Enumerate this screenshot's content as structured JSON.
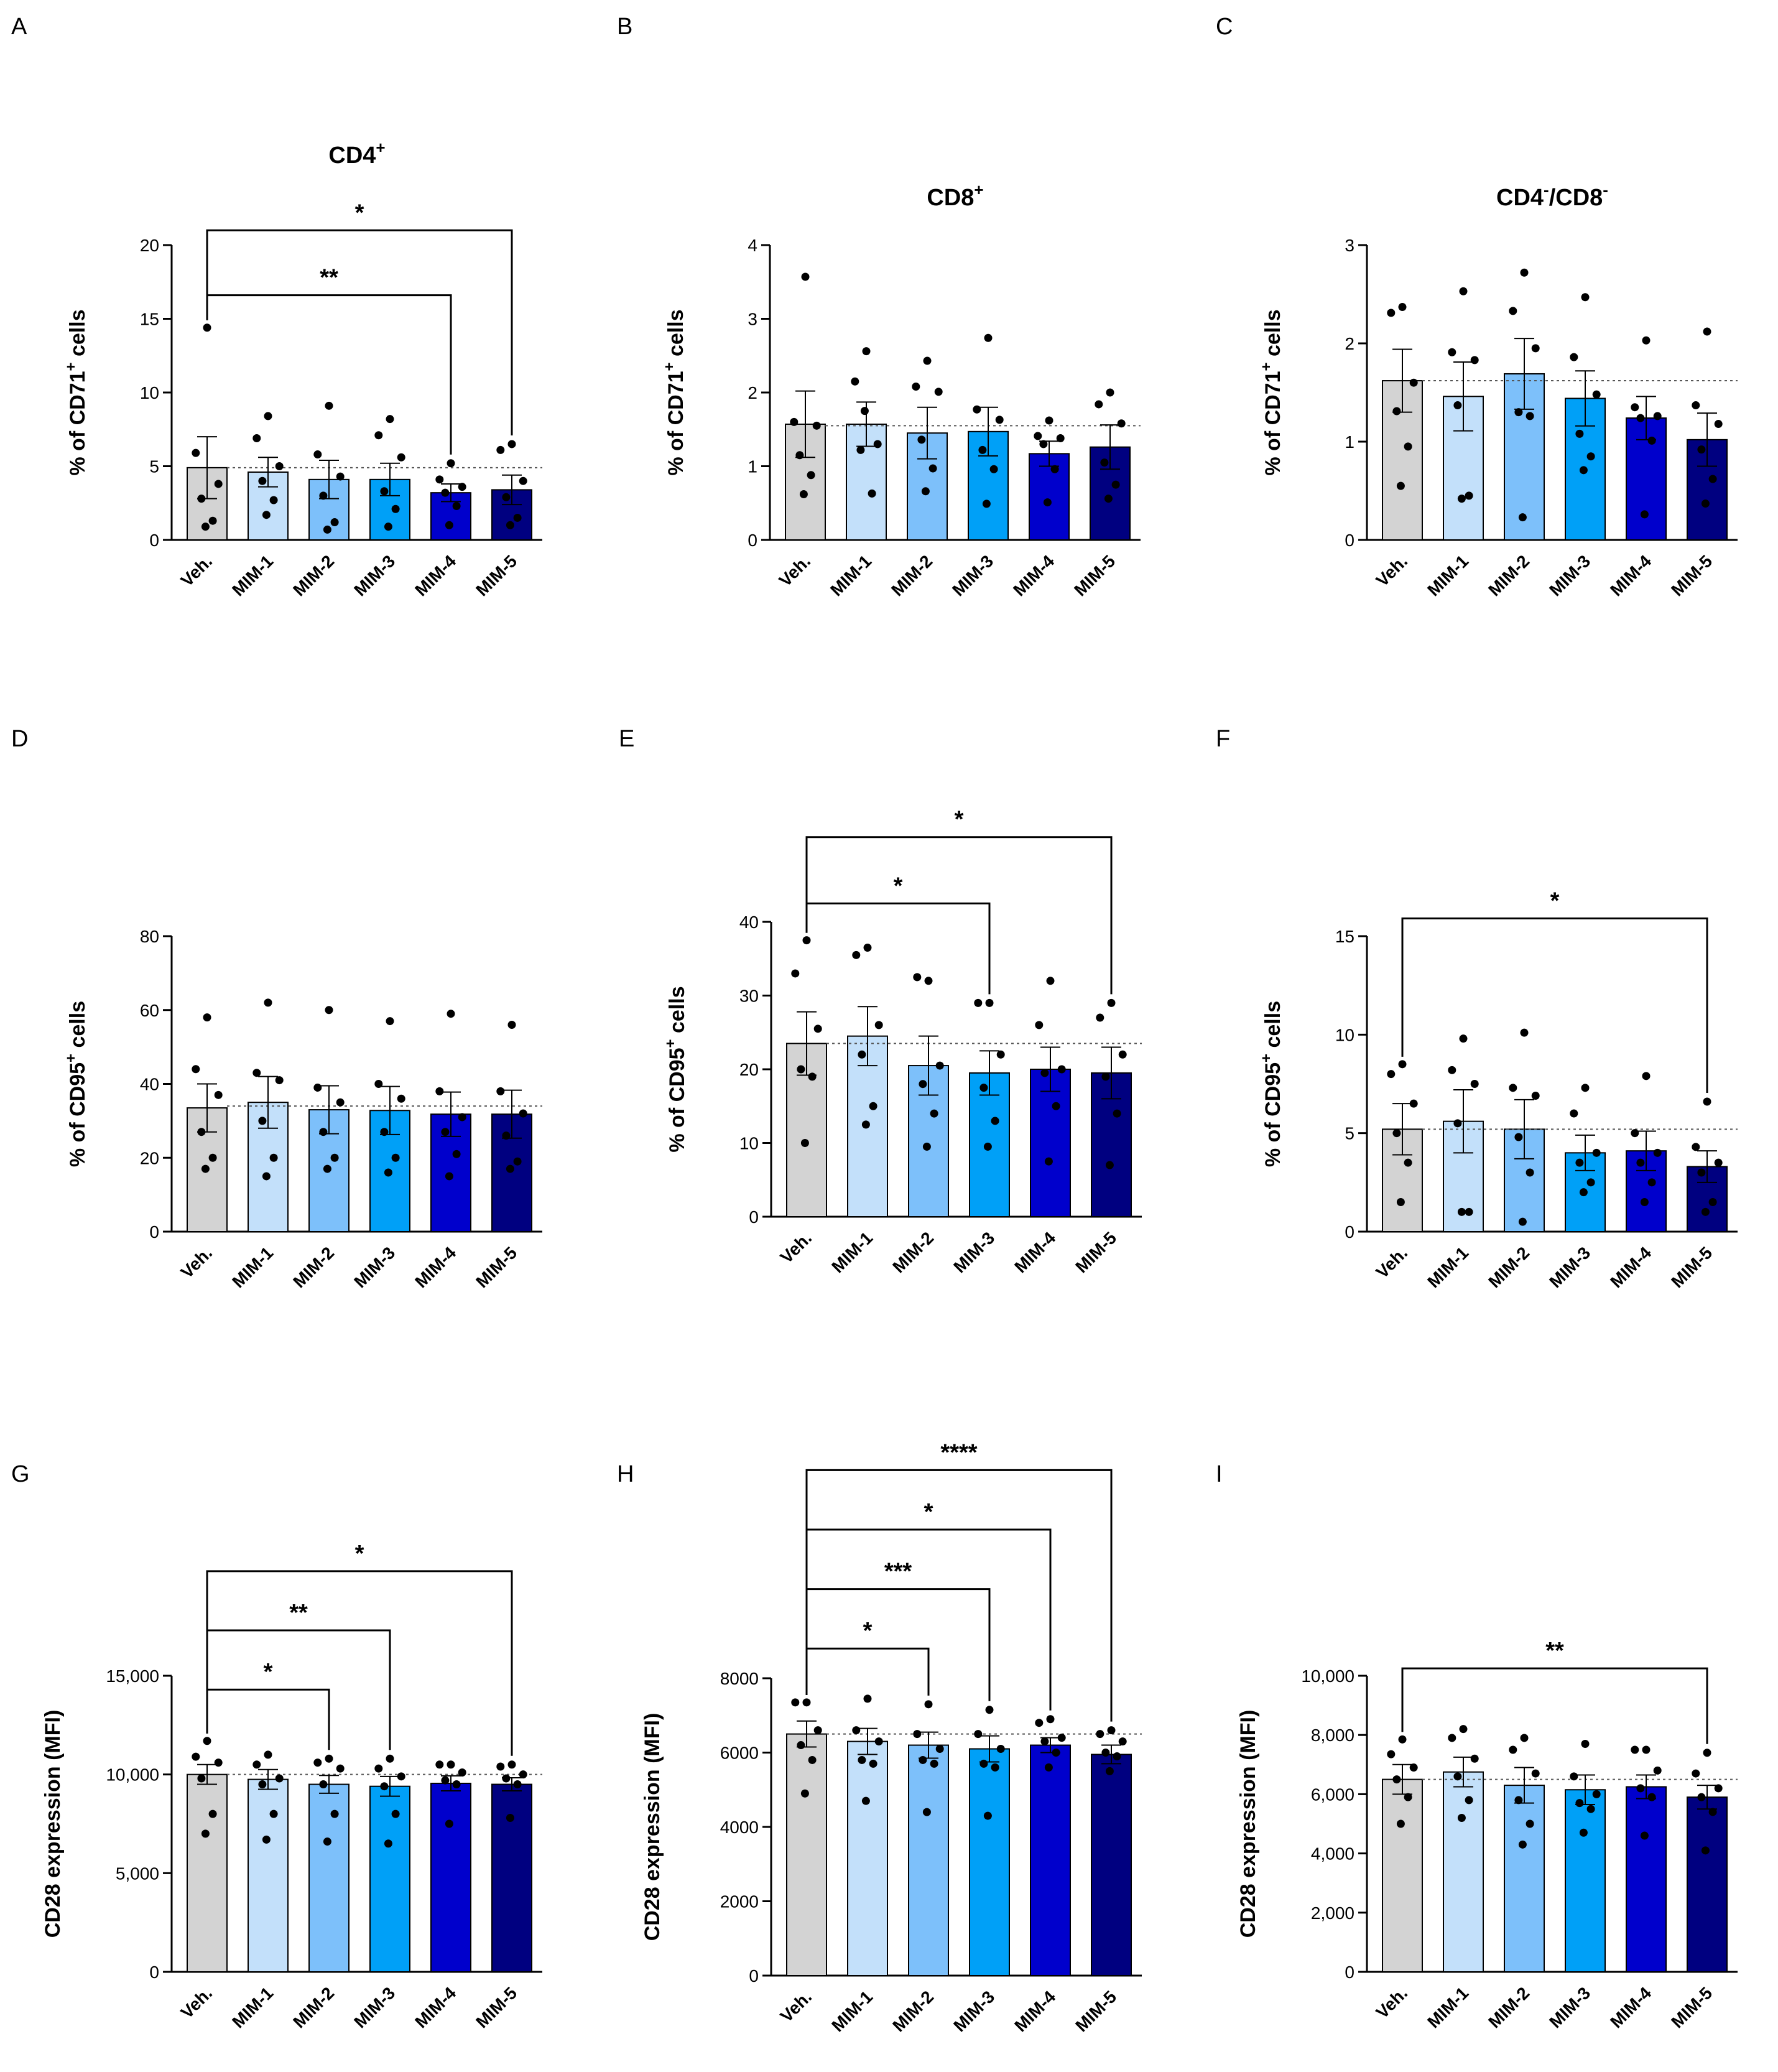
{
  "figure": {
    "colors": [
      "#d3d3d3",
      "#c3e0fa",
      "#7dc0fa",
      "#00a0f7",
      "#0000cc",
      "#000080"
    ]
  },
  "chart_data": [
    {
      "panel": "A",
      "type": "bar",
      "title": "CD4",
      "title_sup": "+",
      "ylabel": "% of CD71",
      "ylabel_sup": "+",
      "ylabel_suffix": " cells",
      "ylim": [
        0,
        20
      ],
      "yticks": [
        0,
        5,
        10,
        15,
        20
      ],
      "ytick_labels": [
        "0",
        "5",
        "10",
        "15",
        "20"
      ],
      "categories": [
        "Veh.",
        "MIM-1",
        "MIM-2",
        "MIM-3",
        "MIM-4",
        "MIM-5"
      ],
      "values": [
        4.9,
        4.6,
        4.1,
        4.1,
        3.2,
        3.4
      ],
      "errors": [
        2.1,
        1.0,
        1.3,
        1.1,
        0.6,
        1.0
      ],
      "points": [
        [
          14.4,
          5.9,
          3.8,
          2.8,
          1.3,
          0.9
        ],
        [
          8.4,
          6.9,
          5.0,
          4.0,
          2.7,
          1.7
        ],
        [
          9.1,
          5.8,
          4.3,
          3.0,
          1.2,
          0.7
        ],
        [
          8.2,
          7.1,
          5.6,
          3.3,
          2.1,
          0.9
        ],
        [
          5.2,
          4.1,
          3.6,
          3.2,
          2.3,
          1.0
        ],
        [
          6.5,
          6.1,
          4.0,
          2.9,
          1.5,
          1.0
        ]
      ],
      "reference": 4.9,
      "significance": [
        {
          "from": 0,
          "to": 5,
          "y": 21,
          "label": "*"
        },
        {
          "from": 0,
          "to": 4,
          "y": 16.6,
          "label": "**"
        }
      ]
    },
    {
      "panel": "B",
      "type": "bar",
      "title": "CD8",
      "title_sup": "+",
      "ylabel": "% of CD71",
      "ylabel_sup": "+",
      "ylabel_suffix": " cells",
      "ylim": [
        0,
        4
      ],
      "yticks": [
        0,
        1,
        2,
        3,
        4
      ],
      "ytick_labels": [
        "0",
        "1",
        "2",
        "3",
        "4"
      ],
      "categories": [
        "Veh.",
        "MIM-1",
        "MIM-2",
        "MIM-3",
        "MIM-4",
        "MIM-5"
      ],
      "values": [
        1.57,
        1.57,
        1.45,
        1.47,
        1.17,
        1.26
      ],
      "errors": [
        0.45,
        0.3,
        0.35,
        0.33,
        0.17,
        0.3
      ],
      "points": [
        [
          3.57,
          1.6,
          1.55,
          1.15,
          0.88,
          0.62
        ],
        [
          2.56,
          2.15,
          1.3,
          1.22,
          0.63,
          1.75
        ],
        [
          2.43,
          2.08,
          2.01,
          1.36,
          0.97,
          0.66
        ],
        [
          2.74,
          1.77,
          1.63,
          1.22,
          0.96,
          0.49
        ],
        [
          1.62,
          1.41,
          1.38,
          1.3,
          0.96,
          0.51
        ],
        [
          2.0,
          1.84,
          1.58,
          1.05,
          0.75,
          0.56
        ]
      ],
      "reference": 1.55,
      "significance": []
    },
    {
      "panel": "C",
      "type": "bar",
      "title": "CD4",
      "title_sup": "-",
      "title_mid": "/CD8",
      "title_sup2": "-",
      "ylabel": "% of CD71",
      "ylabel_sup": "+",
      "ylabel_suffix": " cells",
      "ylim": [
        0,
        3
      ],
      "yticks": [
        0,
        1,
        2,
        3
      ],
      "ytick_labels": [
        "0",
        "1",
        "2",
        "3"
      ],
      "categories": [
        "Veh.",
        "MIM-1",
        "MIM-2",
        "MIM-3",
        "MIM-4",
        "MIM-5"
      ],
      "values": [
        1.62,
        1.46,
        1.69,
        1.44,
        1.24,
        1.02
      ],
      "errors": [
        0.32,
        0.35,
        0.36,
        0.28,
        0.22,
        0.27
      ],
      "points": [
        [
          2.37,
          2.31,
          1.6,
          1.31,
          0.95,
          0.55
        ],
        [
          2.53,
          1.91,
          1.83,
          1.37,
          0.45,
          0.42
        ],
        [
          2.72,
          2.33,
          1.95,
          1.3,
          1.26,
          0.23
        ],
        [
          2.47,
          1.86,
          1.48,
          1.08,
          0.85,
          0.71
        ],
        [
          2.03,
          1.35,
          1.26,
          1.24,
          1.01,
          0.26
        ],
        [
          2.12,
          1.37,
          1.18,
          0.92,
          0.62,
          0.37
        ]
      ],
      "reference": 1.62,
      "significance": []
    },
    {
      "panel": "D",
      "type": "bar",
      "title": "",
      "ylabel": "% of CD95",
      "ylabel_sup": "+",
      "ylabel_suffix": " cells",
      "ylim": [
        0,
        80
      ],
      "yticks": [
        0,
        20,
        40,
        60,
        80
      ],
      "ytick_labels": [
        "0",
        "20",
        "40",
        "60",
        "80"
      ],
      "categories": [
        "Veh.",
        "MIM-1",
        "MIM-2",
        "MIM-3",
        "MIM-4",
        "MIM-5"
      ],
      "values": [
        33.5,
        35.0,
        33.0,
        32.8,
        31.8,
        31.8
      ],
      "errors": [
        6.5,
        7.0,
        6.5,
        6.5,
        6.0,
        6.5
      ],
      "points": [
        [
          58.0,
          44.0,
          37.0,
          27.0,
          20.0,
          17.0
        ],
        [
          62.0,
          43.0,
          41.0,
          30.0,
          20.0,
          15.0
        ],
        [
          60.0,
          39.0,
          35.0,
          27.0,
          20.0,
          17.0
        ],
        [
          57.0,
          40.0,
          36.0,
          27.0,
          20.0,
          16.0
        ],
        [
          59.0,
          38.0,
          31.0,
          27.0,
          21.0,
          15.0
        ],
        [
          56.0,
          38.0,
          32.0,
          26.0,
          19.0,
          17.0
        ]
      ],
      "reference": 34.0,
      "significance": []
    },
    {
      "panel": "E",
      "type": "bar",
      "title": "",
      "ylabel": "% of CD95",
      "ylabel_sup": "+",
      "ylabel_suffix": " cells",
      "ylim": [
        0,
        40
      ],
      "yticks": [
        0,
        10,
        20,
        30,
        40
      ],
      "ytick_labels": [
        "0",
        "10",
        "20",
        "30",
        "40"
      ],
      "categories": [
        "Veh.",
        "MIM-1",
        "MIM-2",
        "MIM-3",
        "MIM-4",
        "MIM-5"
      ],
      "values": [
        23.5,
        24.5,
        20.5,
        19.5,
        20.0,
        19.5
      ],
      "errors": [
        4.3,
        4.0,
        4.0,
        3.0,
        3.0,
        3.5
      ],
      "points": [
        [
          37.5,
          33.0,
          25.5,
          20.0,
          19.0,
          10.0
        ],
        [
          36.5,
          35.5,
          26.0,
          22.0,
          15.0,
          12.5
        ],
        [
          32.0,
          32.5,
          20.5,
          18.0,
          14.0,
          9.5
        ],
        [
          29.0,
          29.0,
          22.0,
          17.5,
          13.0,
          9.5
        ],
        [
          32.0,
          26.0,
          20.0,
          19.5,
          15.0,
          7.5
        ],
        [
          29.0,
          27.0,
          22.0,
          19.0,
          14.0,
          7.0
        ]
      ],
      "reference": 23.5,
      "significance": [
        {
          "from": 0,
          "to": 5,
          "y": 51.5,
          "label": "*"
        },
        {
          "from": 0,
          "to": 3,
          "y": 42.5,
          "label": "*"
        }
      ]
    },
    {
      "panel": "F",
      "type": "bar",
      "title": "",
      "ylabel": "% of CD95",
      "ylabel_sup": "+",
      "ylabel_suffix": " cells",
      "ylim": [
        0,
        15
      ],
      "yticks": [
        0,
        5,
        10,
        15
      ],
      "ytick_labels": [
        "0",
        "5",
        "10",
        "15"
      ],
      "categories": [
        "Veh.",
        "MIM-1",
        "MIM-2",
        "MIM-3",
        "MIM-4",
        "MIM-5"
      ],
      "values": [
        5.2,
        5.6,
        5.2,
        4.0,
        4.1,
        3.3
      ],
      "errors": [
        1.3,
        1.6,
        1.5,
        0.9,
        1.0,
        0.8
      ],
      "points": [
        [
          8.5,
          8.0,
          6.5,
          5.0,
          3.5,
          1.5
        ],
        [
          9.8,
          8.2,
          7.5,
          5.5,
          1.0,
          1.0
        ],
        [
          10.1,
          7.3,
          6.9,
          4.8,
          3.0,
          0.5
        ],
        [
          7.3,
          6.0,
          4.0,
          3.5,
          2.5,
          2.0
        ],
        [
          7.9,
          5.0,
          4.0,
          3.5,
          2.5,
          1.5
        ],
        [
          6.6,
          4.3,
          3.5,
          3.0,
          1.5,
          1.0
        ]
      ],
      "reference": 5.2,
      "significance": [
        {
          "from": 0,
          "to": 5,
          "y": 15.9,
          "label": "*"
        }
      ]
    },
    {
      "panel": "G",
      "type": "bar",
      "title": "",
      "ylabel": "CD28 expression (MFI)",
      "ylim": [
        0,
        15000
      ],
      "yticks": [
        0,
        5000,
        10000,
        15000
      ],
      "ytick_labels": [
        "0",
        "5,000",
        "10,000",
        "15,000"
      ],
      "categories": [
        "Veh.",
        "MIM-1",
        "MIM-2",
        "MIM-3",
        "MIM-4",
        "MIM-5"
      ],
      "values": [
        10000,
        9750,
        9500,
        9400,
        9550,
        9500
      ],
      "errors": [
        500,
        500,
        450,
        500,
        380,
        330
      ],
      "points": [
        [
          11700,
          10900,
          10600,
          9800,
          8000,
          7000
        ],
        [
          11000,
          10500,
          9800,
          9500,
          8000,
          6700
        ],
        [
          10800,
          10600,
          10300,
          9500,
          8000,
          6600
        ],
        [
          10800,
          10300,
          9900,
          9400,
          8000,
          6500
        ],
        [
          10500,
          10500,
          10100,
          9700,
          9500,
          7500
        ],
        [
          10500,
          10400,
          10000,
          9800,
          9500,
          7800
        ]
      ],
      "reference": 10000,
      "significance": [
        {
          "from": 0,
          "to": 5,
          "y": 20300,
          "label": "*"
        },
        {
          "from": 0,
          "to": 3,
          "y": 17300,
          "label": "**"
        },
        {
          "from": 0,
          "to": 2,
          "y": 14300,
          "label": "*"
        }
      ]
    },
    {
      "panel": "H",
      "type": "bar",
      "title": "",
      "ylabel": "CD28 expression (MFI)",
      "ylim": [
        0,
        8000
      ],
      "yticks": [
        0,
        2000,
        4000,
        6000,
        8000
      ],
      "ytick_labels": [
        "0",
        "2000",
        "4000",
        "6000",
        "8000"
      ],
      "categories": [
        "Veh.",
        "MIM-1",
        "MIM-2",
        "MIM-3",
        "MIM-4",
        "MIM-5"
      ],
      "values": [
        6500,
        6300,
        6200,
        6100,
        6200,
        5950
      ],
      "errors": [
        350,
        350,
        350,
        350,
        200,
        250
      ],
      "points": [
        [
          7350,
          7350,
          6600,
          6200,
          5800,
          4900
        ],
        [
          7450,
          6600,
          6300,
          5800,
          5700,
          4700
        ],
        [
          7300,
          6500,
          6100,
          5800,
          5700,
          4400
        ],
        [
          7150,
          6500,
          6100,
          5700,
          5600,
          4300
        ],
        [
          6900,
          6800,
          6400,
          6300,
          6000,
          5600
        ],
        [
          6600,
          6500,
          6300,
          6000,
          5900,
          5500
        ]
      ],
      "reference": 6500,
      "significance": [
        {
          "from": 0,
          "to": 5,
          "y": 13600,
          "label": "****"
        },
        {
          "from": 0,
          "to": 4,
          "y": 12000,
          "label": "*"
        },
        {
          "from": 0,
          "to": 3,
          "y": 10400,
          "label": "***"
        },
        {
          "from": 0,
          "to": 2,
          "y": 8800,
          "label": "*"
        }
      ]
    },
    {
      "panel": "I",
      "type": "bar",
      "title": "",
      "ylabel": "CD28 expression (MFI)",
      "ylim": [
        0,
        10000
      ],
      "yticks": [
        0,
        2000,
        4000,
        6000,
        8000,
        10000
      ],
      "ytick_labels": [
        "0",
        "2,000",
        "4,000",
        "6,000",
        "8,000",
        "10,000"
      ],
      "categories": [
        "Veh.",
        "MIM-1",
        "MIM-2",
        "MIM-3",
        "MIM-4",
        "MIM-5"
      ],
      "values": [
        6500,
        6750,
        6300,
        6150,
        6250,
        5900
      ],
      "errors": [
        500,
        500,
        600,
        500,
        400,
        400
      ],
      "points": [
        [
          7850,
          7350,
          6900,
          6500,
          5900,
          5000
        ],
        [
          8200,
          7900,
          7200,
          6600,
          5800,
          5200
        ],
        [
          7900,
          7500,
          6700,
          5800,
          5000,
          4300
        ],
        [
          7700,
          6600,
          6000,
          5700,
          5500,
          4700
        ],
        [
          7500,
          7500,
          6800,
          6200,
          5900,
          4600
        ],
        [
          7400,
          6700,
          6200,
          5900,
          5400,
          4100
        ]
      ],
      "reference": 6500,
      "significance": [
        {
          "from": 0,
          "to": 5,
          "y": 10250,
          "label": "**"
        }
      ]
    }
  ]
}
